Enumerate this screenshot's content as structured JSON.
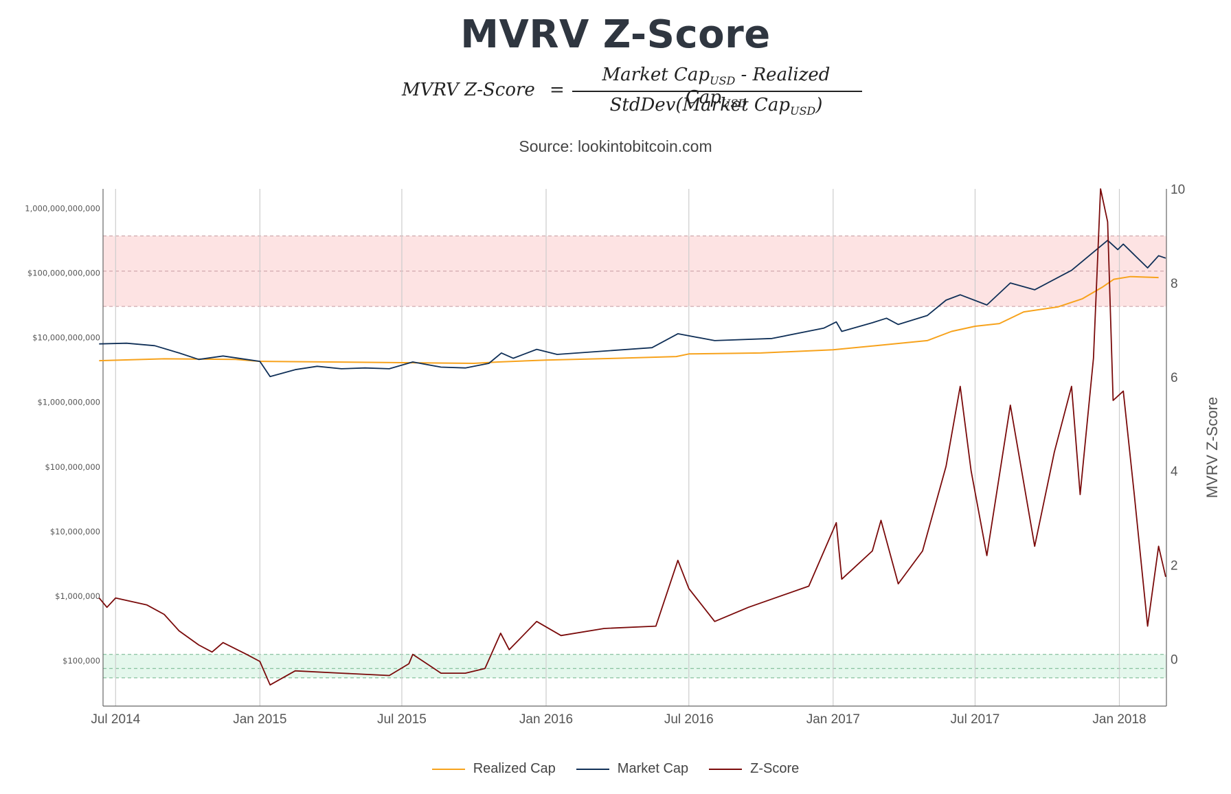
{
  "title": "MVRV Z-Score",
  "formula": {
    "lhs": "MVRV Z-Score",
    "eq": "=",
    "numerator_a": "Market Cap",
    "numerator_sep": " - ",
    "numerator_b": "Realized Cap",
    "sub": "USD",
    "denominator_a": "StdDev(Market Cap",
    "denominator_close": ")"
  },
  "source": "Source: lookintobitcoin.com",
  "colors": {
    "realized_cap": "#f7a21b",
    "market_cap": "#0f2f57",
    "z_score": "#7a0a0a",
    "red_band": "#fde3e3",
    "green_band": "#e4f7ec"
  },
  "chart_data": {
    "type": "line",
    "x_ticks": [
      "Jul 2014",
      "Jan 2015",
      "Jul 2015",
      "Jan 2016",
      "Jul 2016",
      "Jan 2017",
      "Jul 2017",
      "Jan 2018"
    ],
    "y_left_ticks": [
      "$100,000",
      "$1,000,000",
      "$10,000,000",
      "$100,000,000",
      "$1,000,000,000",
      "$10,000,000,000",
      "$100,000,000,000",
      "1,000,000,000,000"
    ],
    "y_left_scale": "log",
    "y_left_range": [
      20000,
      2000000000000
    ],
    "y_right_label": "MVRV Z-Score",
    "y_right_ticks": [
      "0",
      "2",
      "4",
      "6",
      "8",
      "10"
    ],
    "y_right_range": [
      -1,
      10
    ],
    "bands": [
      {
        "name": "red",
        "low": 7.5,
        "high": 9.0,
        "mid": 8.25
      },
      {
        "name": "green",
        "low": -0.4,
        "high": 0.1,
        "mid": -0.2
      }
    ],
    "series": [
      {
        "name": "Realized Cap",
        "axis": "left",
        "points": [
          [
            "2014-06-10",
            4400000000.0
          ],
          [
            "2014-09-01",
            4700000000.0
          ],
          [
            "2014-12-01",
            4600000000.0
          ],
          [
            "2015-01-01",
            4300000000.0
          ],
          [
            "2015-04-01",
            4200000000.0
          ],
          [
            "2015-07-01",
            4100000000.0
          ],
          [
            "2015-10-01",
            4000000000.0
          ],
          [
            "2015-11-01",
            4200000000.0
          ],
          [
            "2016-01-01",
            4500000000.0
          ],
          [
            "2016-04-01",
            4800000000.0
          ],
          [
            "2016-06-15",
            5100000000.0
          ],
          [
            "2016-07-01",
            5600000000.0
          ],
          [
            "2016-10-01",
            5800000000.0
          ],
          [
            "2017-01-01",
            6500000000.0
          ],
          [
            "2017-03-01",
            7600000000.0
          ],
          [
            "2017-05-01",
            9000000000.0
          ],
          [
            "2017-06-01",
            12500000000.0
          ],
          [
            "2017-07-01",
            15000000000.0
          ],
          [
            "2017-08-01",
            16500000000.0
          ],
          [
            "2017-09-01",
            25000000000.0
          ],
          [
            "2017-10-15",
            30000000000.0
          ],
          [
            "2017-11-15",
            40000000000.0
          ],
          [
            "2017-12-10",
            60000000000.0
          ],
          [
            "2017-12-25",
            80000000000.0
          ],
          [
            "2018-01-15",
            88000000000.0
          ],
          [
            "2018-02-20",
            85000000000.0
          ]
        ]
      },
      {
        "name": "Market Cap",
        "axis": "left",
        "points": [
          [
            "2014-06-10",
            8000000000.0
          ],
          [
            "2014-07-15",
            8200000000.0
          ],
          [
            "2014-08-20",
            7500000000.0
          ],
          [
            "2014-09-20",
            5800000000.0
          ],
          [
            "2014-10-15",
            4600000000.0
          ],
          [
            "2014-11-15",
            5200000000.0
          ],
          [
            "2014-12-15",
            4600000000.0
          ],
          [
            "2015-01-01",
            4300000000.0
          ],
          [
            "2015-01-14",
            2500000000.0
          ],
          [
            "2015-02-15",
            3200000000.0
          ],
          [
            "2015-03-15",
            3600000000.0
          ],
          [
            "2015-04-15",
            3300000000.0
          ],
          [
            "2015-05-15",
            3400000000.0
          ],
          [
            "2015-06-15",
            3300000000.0
          ],
          [
            "2015-07-15",
            4200000000.0
          ],
          [
            "2015-08-20",
            3500000000.0
          ],
          [
            "2015-09-20",
            3400000000.0
          ],
          [
            "2015-10-20",
            4000000000.0
          ],
          [
            "2015-11-05",
            5800000000.0
          ],
          [
            "2015-11-20",
            4800000000.0
          ],
          [
            "2015-12-20",
            6600000000.0
          ],
          [
            "2016-01-15",
            5500000000.0
          ],
          [
            "2016-03-15",
            6200000000.0
          ],
          [
            "2016-05-15",
            7000000000.0
          ],
          [
            "2016-06-17",
            11500000000.0
          ],
          [
            "2016-08-03",
            9000000000.0
          ],
          [
            "2016-10-15",
            9700000000.0
          ],
          [
            "2016-12-20",
            14000000000.0
          ],
          [
            "2017-01-05",
            17500000000.0
          ],
          [
            "2017-01-12",
            12500000000.0
          ],
          [
            "2017-02-20",
            17000000000.0
          ],
          [
            "2017-03-10",
            20000000000.0
          ],
          [
            "2017-03-25",
            16000000000.0
          ],
          [
            "2017-05-01",
            22000000000.0
          ],
          [
            "2017-05-25",
            38000000000.0
          ],
          [
            "2017-06-12",
            46000000000.0
          ],
          [
            "2017-07-16",
            32000000000.0
          ],
          [
            "2017-08-15",
            70000000000.0
          ],
          [
            "2017-09-15",
            55000000000.0
          ],
          [
            "2017-11-01",
            110000000000.0
          ],
          [
            "2017-12-17",
            320000000000.0
          ],
          [
            "2017-12-30",
            230000000000.0
          ],
          [
            "2018-01-06",
            280000000000.0
          ],
          [
            "2018-02-06",
            120000000000.0
          ],
          [
            "2018-02-20",
            185000000000.0
          ],
          [
            "2018-03-01",
            170000000000.0
          ]
        ]
      },
      {
        "name": "Z-Score",
        "axis": "right",
        "points": [
          [
            "2014-06-10",
            1.3
          ],
          [
            "2014-06-20",
            1.1
          ],
          [
            "2014-07-01",
            1.3
          ],
          [
            "2014-08-10",
            1.15
          ],
          [
            "2014-09-01",
            0.95
          ],
          [
            "2014-09-20",
            0.6
          ],
          [
            "2014-10-15",
            0.3
          ],
          [
            "2014-11-01",
            0.15
          ],
          [
            "2014-11-15",
            0.35
          ],
          [
            "2014-12-15",
            0.1
          ],
          [
            "2015-01-01",
            -0.05
          ],
          [
            "2015-01-14",
            -0.55
          ],
          [
            "2015-02-15",
            -0.25
          ],
          [
            "2015-04-15",
            -0.3
          ],
          [
            "2015-06-15",
            -0.35
          ],
          [
            "2015-07-10",
            -0.1
          ],
          [
            "2015-07-15",
            0.1
          ],
          [
            "2015-08-20",
            -0.3
          ],
          [
            "2015-09-20",
            -0.3
          ],
          [
            "2015-10-15",
            -0.2
          ],
          [
            "2015-11-04",
            0.55
          ],
          [
            "2015-11-15",
            0.2
          ],
          [
            "2015-12-20",
            0.8
          ],
          [
            "2016-01-20",
            0.5
          ],
          [
            "2016-03-15",
            0.65
          ],
          [
            "2016-05-20",
            0.7
          ],
          [
            "2016-06-17",
            2.1
          ],
          [
            "2016-07-01",
            1.5
          ],
          [
            "2016-08-03",
            0.8
          ],
          [
            "2016-09-15",
            1.1
          ],
          [
            "2016-12-01",
            1.55
          ],
          [
            "2017-01-05",
            2.9
          ],
          [
            "2017-01-12",
            1.7
          ],
          [
            "2017-02-20",
            2.3
          ],
          [
            "2017-03-03",
            2.95
          ],
          [
            "2017-03-25",
            1.6
          ],
          [
            "2017-04-25",
            2.3
          ],
          [
            "2017-05-25",
            4.1
          ],
          [
            "2017-06-12",
            5.8
          ],
          [
            "2017-06-26",
            4.0
          ],
          [
            "2017-07-16",
            2.2
          ],
          [
            "2017-08-15",
            5.4
          ],
          [
            "2017-09-15",
            2.4
          ],
          [
            "2017-10-10",
            4.4
          ],
          [
            "2017-11-01",
            5.8
          ],
          [
            "2017-11-12",
            3.5
          ],
          [
            "2017-11-29",
            6.4
          ],
          [
            "2017-12-08",
            10.0
          ],
          [
            "2017-12-17",
            9.3
          ],
          [
            "2017-12-24",
            5.5
          ],
          [
            "2018-01-06",
            5.7
          ],
          [
            "2018-01-20",
            3.5
          ],
          [
            "2018-02-06",
            0.7
          ],
          [
            "2018-02-20",
            2.4
          ],
          [
            "2018-03-01",
            1.75
          ]
        ]
      }
    ]
  },
  "legend": [
    {
      "label": "Realized Cap",
      "color": "#f7a21b"
    },
    {
      "label": "Market Cap",
      "color": "#0f2f57"
    },
    {
      "label": "Z-Score",
      "color": "#7a0a0a"
    }
  ]
}
